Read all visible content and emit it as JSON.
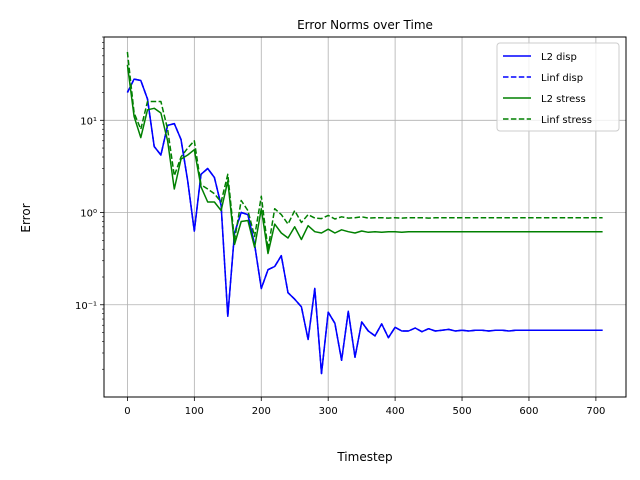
{
  "chart_data": {
    "type": "line",
    "title": "Error Norms over Time",
    "xlabel": "Timestep",
    "ylabel": "Error",
    "xlim": [
      -35,
      745
    ],
    "ylim": [
      0.01,
      80
    ],
    "yscale": "log",
    "grid": true,
    "legend_position": "top-right",
    "xticks": [
      0,
      100,
      200,
      300,
      400,
      500,
      600,
      700
    ],
    "xtick_labels": [
      "0",
      "100",
      "200",
      "300",
      "400",
      "500",
      "600",
      "700"
    ],
    "yticks": [
      0.1,
      1,
      10
    ],
    "ytick_labels": [
      "10⁻¹",
      "10⁰",
      "10¹"
    ],
    "series": [
      {
        "name": "L2 disp",
        "color": "#0000ff",
        "dash": "solid",
        "x": [
          0,
          10,
          20,
          30,
          40,
          50,
          60,
          70,
          80,
          90,
          100,
          110,
          120,
          130,
          140,
          150,
          160,
          170,
          180,
          190,
          200,
          210,
          220,
          230,
          240,
          250,
          260,
          270,
          280,
          290,
          300,
          310,
          320,
          330,
          340,
          350,
          360,
          370,
          380,
          390,
          400,
          410,
          420,
          430,
          440,
          450,
          460,
          470,
          480,
          490,
          500,
          510,
          520,
          530,
          540,
          550,
          560,
          570,
          580,
          590,
          600,
          610,
          620,
          630,
          640,
          650,
          660,
          670,
          680,
          690,
          700,
          710
        ],
        "y": [
          20,
          28,
          27,
          17,
          5.2,
          4.2,
          8.8,
          9.2,
          6.2,
          2.2,
          0.63,
          2.6,
          3,
          2.4,
          1.2,
          0.075,
          0.6,
          1,
          0.95,
          0.45,
          0.15,
          0.24,
          0.26,
          0.34,
          0.135,
          0.115,
          0.095,
          0.042,
          0.15,
          0.018,
          0.083,
          0.063,
          0.025,
          0.085,
          0.027,
          0.065,
          0.052,
          0.046,
          0.062,
          0.044,
          0.057,
          0.052,
          0.052,
          0.056,
          0.051,
          0.055,
          0.052,
          0.053,
          0.054,
          0.052,
          0.053,
          0.052,
          0.053,
          0.053,
          0.052,
          0.053,
          0.053,
          0.052,
          0.053,
          0.053,
          0.053,
          0.053,
          0.053,
          0.053,
          0.053,
          0.053,
          0.053,
          0.053,
          0.053,
          0.053,
          0.053,
          0.053
        ]
      },
      {
        "name": "Linf disp",
        "color": "#0000ff",
        "dash": "dashed",
        "x": [
          0,
          10,
          20,
          30,
          40,
          50,
          60,
          70,
          80,
          90,
          100,
          110,
          120,
          130,
          140,
          150,
          160,
          170,
          180,
          190,
          200,
          210,
          220,
          230,
          240,
          250,
          260,
          270,
          280,
          290,
          300,
          310,
          320,
          330,
          340,
          350,
          360,
          370,
          380,
          390,
          400,
          410,
          420,
          430,
          440,
          450,
          460,
          470,
          480,
          490,
          500,
          510,
          520,
          530,
          540,
          550,
          560,
          570,
          580,
          590,
          600,
          610,
          620,
          630,
          640,
          650,
          660,
          670,
          680,
          690,
          700,
          710
        ],
        "y": [
          20,
          28,
          27,
          17,
          5.2,
          4.2,
          8.8,
          9.2,
          6.2,
          2.2,
          0.63,
          2.6,
          3,
          2.4,
          1.2,
          0.075,
          0.6,
          1,
          0.95,
          0.45,
          0.15,
          0.24,
          0.26,
          0.34,
          0.135,
          0.115,
          0.095,
          0.042,
          0.15,
          0.018,
          0.083,
          0.063,
          0.025,
          0.085,
          0.027,
          0.065,
          0.052,
          0.046,
          0.062,
          0.044,
          0.057,
          0.052,
          0.052,
          0.056,
          0.051,
          0.055,
          0.052,
          0.053,
          0.054,
          0.052,
          0.053,
          0.052,
          0.053,
          0.053,
          0.052,
          0.053,
          0.053,
          0.052,
          0.053,
          0.053,
          0.053,
          0.053,
          0.053,
          0.053,
          0.053,
          0.053,
          0.053,
          0.053,
          0.053,
          0.053,
          0.053,
          0.053
        ]
      },
      {
        "name": "L2 stress",
        "color": "#008000",
        "dash": "solid",
        "x": [
          0,
          10,
          20,
          30,
          40,
          50,
          60,
          70,
          80,
          90,
          100,
          110,
          120,
          130,
          140,
          150,
          160,
          170,
          180,
          190,
          200,
          210,
          220,
          230,
          240,
          250,
          260,
          270,
          280,
          290,
          300,
          310,
          320,
          330,
          340,
          350,
          360,
          370,
          380,
          390,
          400,
          410,
          420,
          430,
          440,
          450,
          460,
          470,
          480,
          490,
          500,
          510,
          520,
          530,
          540,
          550,
          560,
          570,
          580,
          590,
          600,
          610,
          620,
          630,
          640,
          650,
          660,
          670,
          680,
          690,
          700,
          710
        ],
        "y": [
          40,
          11,
          6.5,
          13,
          13.5,
          12,
          6,
          1.8,
          3.8,
          4.2,
          4.8,
          1.9,
          1.3,
          1.3,
          1.05,
          2.2,
          0.45,
          0.8,
          0.82,
          0.42,
          1.1,
          0.36,
          0.75,
          0.6,
          0.53,
          0.7,
          0.51,
          0.72,
          0.62,
          0.6,
          0.66,
          0.6,
          0.65,
          0.62,
          0.6,
          0.63,
          0.61,
          0.62,
          0.61,
          0.62,
          0.62,
          0.61,
          0.62,
          0.62,
          0.62,
          0.62,
          0.62,
          0.62,
          0.62,
          0.62,
          0.62,
          0.62,
          0.62,
          0.62,
          0.62,
          0.62,
          0.62,
          0.62,
          0.62,
          0.62,
          0.62,
          0.62,
          0.62,
          0.62,
          0.62,
          0.62,
          0.62,
          0.62,
          0.62,
          0.62,
          0.62,
          0.62
        ]
      },
      {
        "name": "Linf stress",
        "color": "#008000",
        "dash": "dashed",
        "x": [
          0,
          10,
          20,
          30,
          40,
          50,
          60,
          70,
          80,
          90,
          100,
          110,
          120,
          130,
          140,
          150,
          160,
          170,
          180,
          190,
          200,
          210,
          220,
          230,
          240,
          250,
          260,
          270,
          280,
          290,
          300,
          310,
          320,
          330,
          340,
          350,
          360,
          370,
          380,
          390,
          400,
          410,
          420,
          430,
          440,
          450,
          460,
          470,
          480,
          490,
          500,
          510,
          520,
          530,
          540,
          550,
          560,
          570,
          580,
          590,
          600,
          610,
          620,
          630,
          640,
          650,
          660,
          670,
          680,
          690,
          700,
          710
        ],
        "y": [
          55,
          12,
          8,
          16,
          16,
          16,
          8,
          2.5,
          4,
          5,
          6,
          2,
          1.8,
          1.6,
          1.3,
          2.6,
          0.5,
          1.35,
          1.05,
          0.55,
          1.5,
          0.4,
          1.1,
          0.95,
          0.75,
          1.05,
          0.78,
          0.95,
          0.87,
          0.86,
          0.93,
          0.85,
          0.9,
          0.87,
          0.88,
          0.9,
          0.87,
          0.88,
          0.88,
          0.87,
          0.88,
          0.87,
          0.88,
          0.88,
          0.88,
          0.87,
          0.88,
          0.88,
          0.88,
          0.88,
          0.88,
          0.88,
          0.88,
          0.88,
          0.88,
          0.88,
          0.88,
          0.88,
          0.88,
          0.88,
          0.88,
          0.88,
          0.88,
          0.88,
          0.88,
          0.88,
          0.88,
          0.88,
          0.88,
          0.88,
          0.88,
          0.88
        ]
      }
    ]
  }
}
